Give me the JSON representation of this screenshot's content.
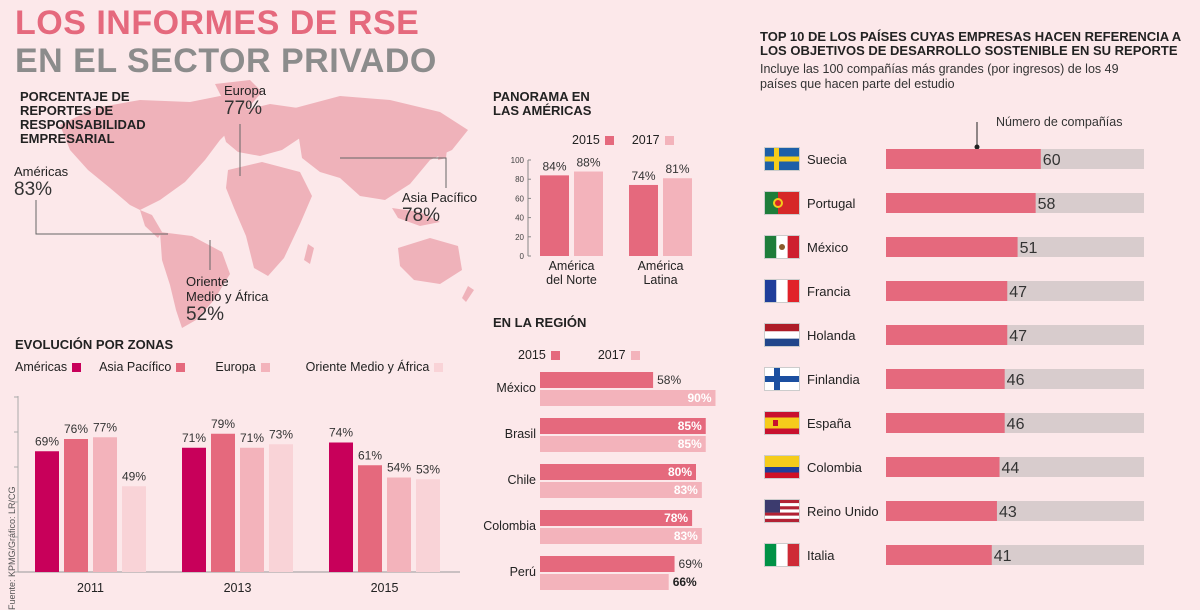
{
  "title": {
    "line1": "LOS INFORMES DE RSE",
    "line2": "EN EL SECTOR PRIVADO"
  },
  "map": {
    "heading": [
      "PORCENTAJE DE",
      "REPORTES DE",
      "RESPONSABILIDAD",
      "EMPRESARIAL"
    ],
    "regions": [
      {
        "name": "Europa",
        "value": "77%"
      },
      {
        "name": "Américas",
        "value": "83%"
      },
      {
        "name": "Asia Pacífico",
        "value": "78%"
      },
      {
        "name_lines": [
          "Oriente",
          "Medio y África"
        ],
        "value": "52%"
      }
    ]
  },
  "source": "Fuente: KPMG/Gráfico: LR/CG",
  "chart_data": [
    {
      "id": "evolucion",
      "type": "bar",
      "title": "EVOLUCIÓN POR ZONAS",
      "categories": [
        "2011",
        "2013",
        "2015"
      ],
      "series": [
        {
          "name": "Américas",
          "color": "#c8005a",
          "values": [
            69,
            71,
            74
          ]
        },
        {
          "name": "Asia Pacífico",
          "color": "#e5697d",
          "values": [
            76,
            79,
            61
          ]
        },
        {
          "name": "Europa",
          "color": "#f3b3bb",
          "values": [
            77,
            71,
            54
          ]
        },
        {
          "name": "Oriente Medio y África",
          "color": "#f9d3d7",
          "values": [
            49,
            73,
            53
          ]
        }
      ],
      "ylim": [
        0,
        100
      ],
      "legend": "top"
    },
    {
      "id": "panorama",
      "type": "bar",
      "title": [
        "PANORAMA EN",
        "LAS AMÉRICAS"
      ],
      "categories": [
        [
          "América",
          "del Norte"
        ],
        [
          "América",
          "Latina"
        ]
      ],
      "series": [
        {
          "name": "2015",
          "color": "#e5697d",
          "values": [
            84,
            74
          ]
        },
        {
          "name": "2017",
          "color": "#f3b3bb",
          "values": [
            88,
            81
          ]
        }
      ],
      "yticks": [
        "100",
        "80",
        "60",
        "40",
        "20",
        "0"
      ],
      "ylim": [
        0,
        100
      ],
      "legend": "top"
    },
    {
      "id": "region",
      "type": "bar",
      "orientation": "horizontal",
      "title": "EN LA REGIÓN",
      "categories": [
        "México",
        "Brasil",
        "Chile",
        "Colombia",
        "Perú"
      ],
      "series": [
        {
          "name": "2015",
          "color": "#e5697d",
          "values": [
            58,
            85,
            80,
            78,
            69
          ]
        },
        {
          "name": "2017",
          "color": "#f3b3bb",
          "values": [
            90,
            85,
            83,
            83,
            66
          ]
        }
      ],
      "xlim": [
        0,
        100
      ],
      "legend": "top"
    },
    {
      "id": "top10",
      "type": "bar",
      "orientation": "horizontal",
      "title": [
        "TOP 10 DE LOS PAÍSES CUYAS EMPRESAS HACEN REFERENCIA A",
        "LOS OBJETIVOS DE DESARROLLO SOSTENIBLE EN SU REPORTE"
      ],
      "subtitle": [
        "Incluye las 100 compañías más grandes (por ingresos) de los 49",
        "países que hacen parte del estudio"
      ],
      "annotation": "Número de compañías",
      "categories": [
        "Suecia",
        "Portugal",
        "México",
        "Francia",
        "Holanda",
        "Finlandia",
        "España",
        "Colombia",
        "Reino Unido",
        "Italia"
      ],
      "flags": [
        "flag-sweden-icon",
        "flag-portugal-icon",
        "flag-mexico-icon",
        "flag-france-icon",
        "flag-netherlands-icon",
        "flag-finland-icon",
        "flag-spain-icon",
        "flag-colombia-icon",
        "flag-uk-icon",
        "flag-italy-icon"
      ],
      "values": [
        60,
        58,
        51,
        47,
        47,
        46,
        46,
        44,
        43,
        41
      ],
      "xlim": [
        0,
        100
      ],
      "bar_color": "#e5697d",
      "track_color": "#d8cccd"
    }
  ]
}
